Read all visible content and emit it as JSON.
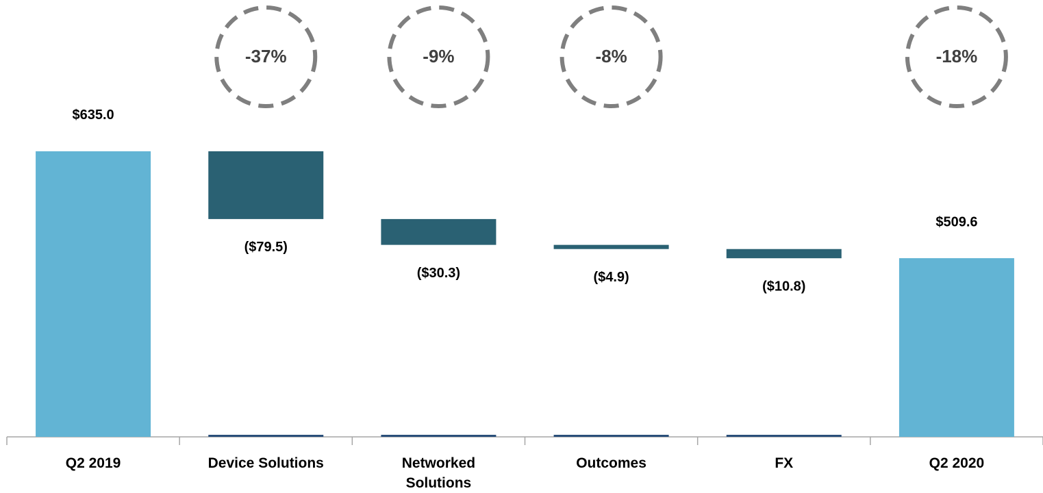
{
  "chart_data": {
    "type": "waterfall",
    "categories": [
      "Q2 2019",
      "Device Solutions",
      "Networked Solutions",
      "Outcomes",
      "FX",
      "Q2 2020"
    ],
    "measure": [
      "absolute",
      "relative",
      "relative",
      "relative",
      "relative",
      "absolute"
    ],
    "values": [
      635.0,
      -79.5,
      -30.3,
      -4.9,
      -10.8,
      509.6
    ],
    "value_labels": [
      "$635.0",
      "($79.5)",
      "($30.3)",
      "($4.9)",
      "($10.8)",
      "$509.6"
    ],
    "annotations": [
      null,
      "-37%",
      "-9%",
      "-8%",
      null,
      "-18%"
    ],
    "total_color": "#62b4d4",
    "change_color": "#2a6173",
    "ylim": [
      300,
      700
    ]
  }
}
